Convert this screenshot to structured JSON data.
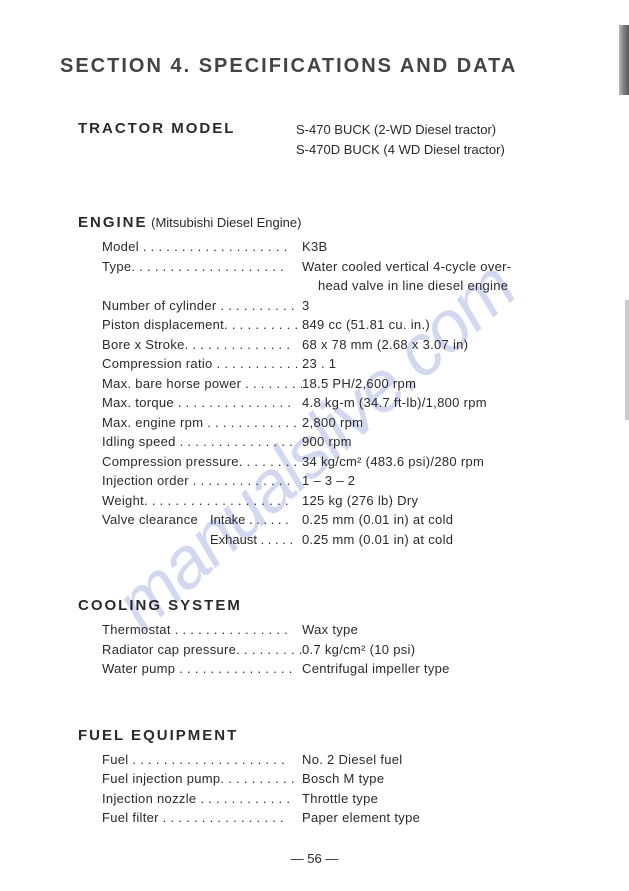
{
  "watermark": "manualslive.com",
  "section_title": "SECTION 4.  SPECIFICATIONS  AND  DATA",
  "tractor_model": {
    "label": "TRACTOR  MODEL",
    "line1": "S-470    BUCK (2-WD Diesel tractor)",
    "line2": "S-470D BUCK (4 WD Diesel tractor)"
  },
  "engine": {
    "heading": "ENGINE",
    "subheading": " (Mitsubishi Diesel Engine)",
    "rows": [
      {
        "label": "Model . . . . . . . . . . . . . . . . . . .",
        "value": "K3B"
      },
      {
        "label": "Type. . . . . . . . . . . . . . . . . . . .",
        "value": "Water  cooled  vertical  4-cycle  over-",
        "cont": "head valve in line diesel engine"
      },
      {
        "label": "Number of cylinder . . . . . . . . . .",
        "value": "3"
      },
      {
        "label": "Piston displacement. . . . . . . . . .",
        "value": "849 cc (51.81 cu. in.)"
      },
      {
        "label": "Bore x Stroke. . . . . . . . . . . . . .",
        "value": "68 x 78 mm (2.68 x 3.07 in)"
      },
      {
        "label": "Compression ratio . . . . . . . . . . .",
        "value": "23 . 1"
      },
      {
        "label": "Max. bare horse power . . . . . . . .",
        "value": "18.5 PH/2,600 rpm"
      },
      {
        "label": "Max. torque . . . . . . . . . . . . . . .",
        "value": "4.8 kg-m (34.7 ft-lb)/1,800 rpm"
      },
      {
        "label": "Max. engine rpm . . . . . . . . . . . .",
        "value": "2,800 rpm"
      },
      {
        "label": "Idling speed  . . . . . . . . . . . . . . .",
        "value": "900 rpm"
      },
      {
        "label": "Compression pressure. . . . . . . . .",
        "value": "34 kg/cm² (483.6 psi)/280 rpm"
      },
      {
        "label": "Injection order . . . . . . . . . . . . .",
        "value": "1 – 3 – 2"
      },
      {
        "label": "Weight. . . . . . . . . . . . . . . . . . .",
        "value": "125 kg (276 lb) Dry"
      }
    ],
    "valve": {
      "label": "Valve clearance",
      "intake_label": "Intake . . . . . .",
      "intake_value": "0.25 mm (0.01 in) at cold",
      "exhaust_label": "Exhaust . . . . .",
      "exhaust_value": "0.25 mm (0.01 in) at cold"
    }
  },
  "cooling": {
    "heading": "COOLING  SYSTEM",
    "rows": [
      {
        "label": "Thermostat . . . . . . . . . . . . . . .",
        "value": "Wax type"
      },
      {
        "label": "Radiator cap pressure. . . . . . . . .",
        "value": "0.7 kg/cm²  (10 psi)"
      },
      {
        "label": "Water pump  . . . . . . . . . . . . . . .",
        "value": "Centrifugal impeller type"
      }
    ]
  },
  "fuel": {
    "heading": "FUEL  EQUIPMENT",
    "rows": [
      {
        "label": "Fuel . . . . . . . . . . . . . . . . . . . .",
        "value": "No. 2 Diesel fuel"
      },
      {
        "label": "Fuel injection pump. . . . . . . . . .",
        "value": "Bosch M type"
      },
      {
        "label": "Injection nozzle  . . . . . . . . . . . .",
        "value": "Throttle type"
      },
      {
        "label": "Fuel filter  . . . . . . . . . . . . . . . .",
        "value": "Paper element type"
      }
    ]
  },
  "page_number": "— 56 —"
}
